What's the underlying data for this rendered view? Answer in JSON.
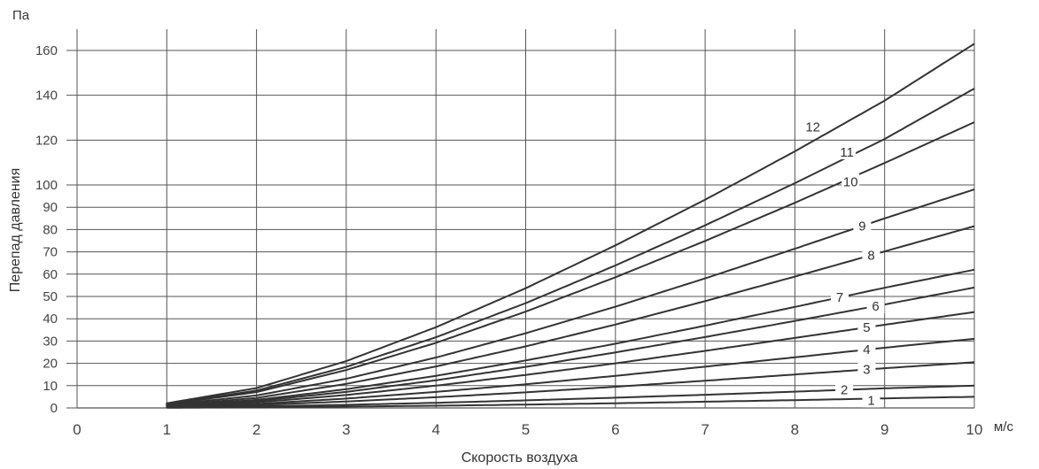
{
  "chart_data": {
    "type": "line",
    "title": "",
    "xlabel": "Скорость воздуха",
    "ylabel": "Перепад давления",
    "x_unit": "м/с",
    "y_unit": "Па",
    "xlim": [
      0,
      10
    ],
    "ylim": [
      0,
      170
    ],
    "x_ticks": [
      0,
      1,
      2,
      3,
      4,
      5,
      6,
      7,
      8,
      9,
      10
    ],
    "y_ticks": [
      0,
      10,
      20,
      30,
      40,
      50,
      60,
      70,
      80,
      90,
      100,
      120,
      140,
      160
    ],
    "grid": true,
    "line_color": "#333333",
    "grid_color": "#555555",
    "x": [
      1,
      2,
      3,
      4,
      5,
      6,
      7,
      8,
      9,
      10
    ],
    "series": [
      {
        "name": "1",
        "values": [
          0.1,
          0.3,
          0.6,
          1.0,
          1.5,
          2.1,
          2.8,
          3.5,
          4.3,
          5.0
        ]
      },
      {
        "name": "2",
        "values": [
          0.2,
          0.7,
          1.4,
          2.3,
          3.4,
          4.6,
          5.9,
          7.3,
          8.8,
          10.0
        ]
      },
      {
        "name": "3",
        "values": [
          0.3,
          1.3,
          2.9,
          4.8,
          7.0,
          9.5,
          12.2,
          15.0,
          17.8,
          20.5
        ]
      },
      {
        "name": "4",
        "values": [
          0.4,
          1.8,
          4.2,
          7.2,
          10.6,
          14.4,
          18.5,
          22.7,
          27.0,
          31.0
        ]
      },
      {
        "name": "5",
        "values": [
          0.6,
          2.5,
          5.8,
          10.0,
          14.8,
          20.0,
          25.6,
          31.4,
          37.3,
          43.0
        ]
      },
      {
        "name": "6",
        "values": [
          0.7,
          3.1,
          7.2,
          12.4,
          18.4,
          24.9,
          31.8,
          39.0,
          46.4,
          54.0
        ]
      },
      {
        "name": "7",
        "values": [
          0.8,
          3.6,
          8.4,
          14.4,
          21.3,
          28.8,
          36.9,
          45.3,
          53.9,
          62.0
        ]
      },
      {
        "name": "8",
        "values": [
          1.0,
          4.5,
          10.8,
          18.6,
          27.6,
          37.4,
          47.9,
          58.9,
          70.2,
          81.5
        ]
      },
      {
        "name": "9",
        "values": [
          1.3,
          5.6,
          13.1,
          22.6,
          33.5,
          45.4,
          58.1,
          71.4,
          85.0,
          98.0
        ]
      },
      {
        "name": "10",
        "values": [
          1.6,
          7.1,
          17.0,
          29.2,
          43.2,
          58.6,
          74.9,
          92.0,
          109.8,
          128.0
        ]
      },
      {
        "name": "11",
        "values": [
          1.8,
          7.8,
          18.4,
          31.7,
          47.0,
          63.9,
          81.9,
          100.8,
          120.5,
          143.0
        ]
      },
      {
        "name": "12",
        "values": [
          2.1,
          8.9,
          21.0,
          36.2,
          53.7,
          72.9,
          93.4,
          115.0,
          137.6,
          163.0
        ]
      }
    ]
  }
}
